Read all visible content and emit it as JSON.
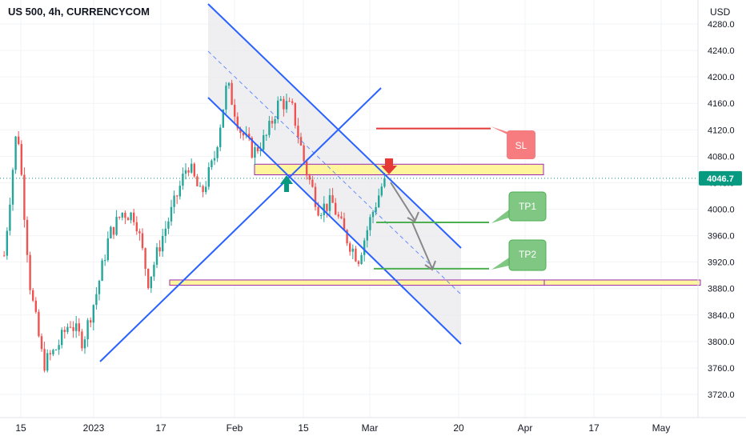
{
  "header": {
    "title": "US 500, 4h, CURRENCYCOM",
    "currency": "USD"
  },
  "price_axis": {
    "ticks": [
      "4280.0",
      "4240.0",
      "4200.0",
      "4160.0",
      "4120.0",
      "4080.0",
      "4040.0",
      "4000.0",
      "3960.0",
      "3920.0",
      "3880.0",
      "3840.0",
      "3800.0",
      "3760.0",
      "3720.0"
    ],
    "current_price": "4046.7"
  },
  "time_axis": {
    "ticks": [
      "15",
      "2023",
      "17",
      "Feb",
      "15",
      "Mar",
      "20",
      "Apr",
      "17",
      "May"
    ]
  },
  "annotations": {
    "sl": "SL",
    "tp1": "TP1",
    "tp2": "TP2"
  },
  "colors": {
    "up": "#26a69a",
    "down": "#ef5350",
    "channel": "#2962ff",
    "zone_fill": "#fff59d",
    "zone_border": "#9c27b0",
    "sl_red": "#e53935",
    "tp_green": "#4caf50",
    "tag_green": "#81c784",
    "tag_red": "#f77c80",
    "price_tag": "#089981",
    "arrow_teal": "#089981",
    "arrow_red": "#e53935"
  },
  "chart_data": {
    "type": "candlestick",
    "symbol": "US 500",
    "timeframe": "4h",
    "y_range": [
      3700,
      4290
    ],
    "current_price": 4046.7,
    "close_path": [
      {
        "x": "15",
        "close": 3930
      },
      {
        "x": "",
        "close": 4130
      },
      {
        "x": "",
        "close": 3880
      },
      {
        "x": "",
        "close": 3765
      },
      {
        "x": "",
        "close": 3790
      },
      {
        "x": "2023",
        "close": 3830
      },
      {
        "x": "",
        "close": 3800
      },
      {
        "x": "",
        "close": 3870
      },
      {
        "x": "",
        "close": 3960
      },
      {
        "x": "",
        "close": 3995
      },
      {
        "x": "17",
        "close": 3990
      },
      {
        "x": "",
        "close": 3890
      },
      {
        "x": "",
        "close": 3955
      },
      {
        "x": "",
        "close": 4010
      },
      {
        "x": "",
        "close": 4070
      },
      {
        "x": "",
        "close": 4020
      },
      {
        "x": "Feb",
        "close": 4075
      },
      {
        "x": "",
        "close": 4190
      },
      {
        "x": "",
        "close": 4120
      },
      {
        "x": "",
        "close": 4085
      },
      {
        "x": "",
        "close": 4110
      },
      {
        "x": "15",
        "close": 4165
      },
      {
        "x": "",
        "close": 4150
      },
      {
        "x": "",
        "close": 4060
      },
      {
        "x": "",
        "close": 4000
      },
      {
        "x": "",
        "close": 4010
      },
      {
        "x": "",
        "close": 3960
      },
      {
        "x": "Mar",
        "close": 3925
      },
      {
        "x": "",
        "close": 3990
      },
      {
        "x": "",
        "close": 4046.7
      }
    ],
    "levels": {
      "stop_loss": 4122,
      "tp1": 3980,
      "tp2": 3910,
      "resistance_zone": [
        4052,
        4068
      ],
      "support_zone": [
        3885,
        3893
      ]
    }
  }
}
